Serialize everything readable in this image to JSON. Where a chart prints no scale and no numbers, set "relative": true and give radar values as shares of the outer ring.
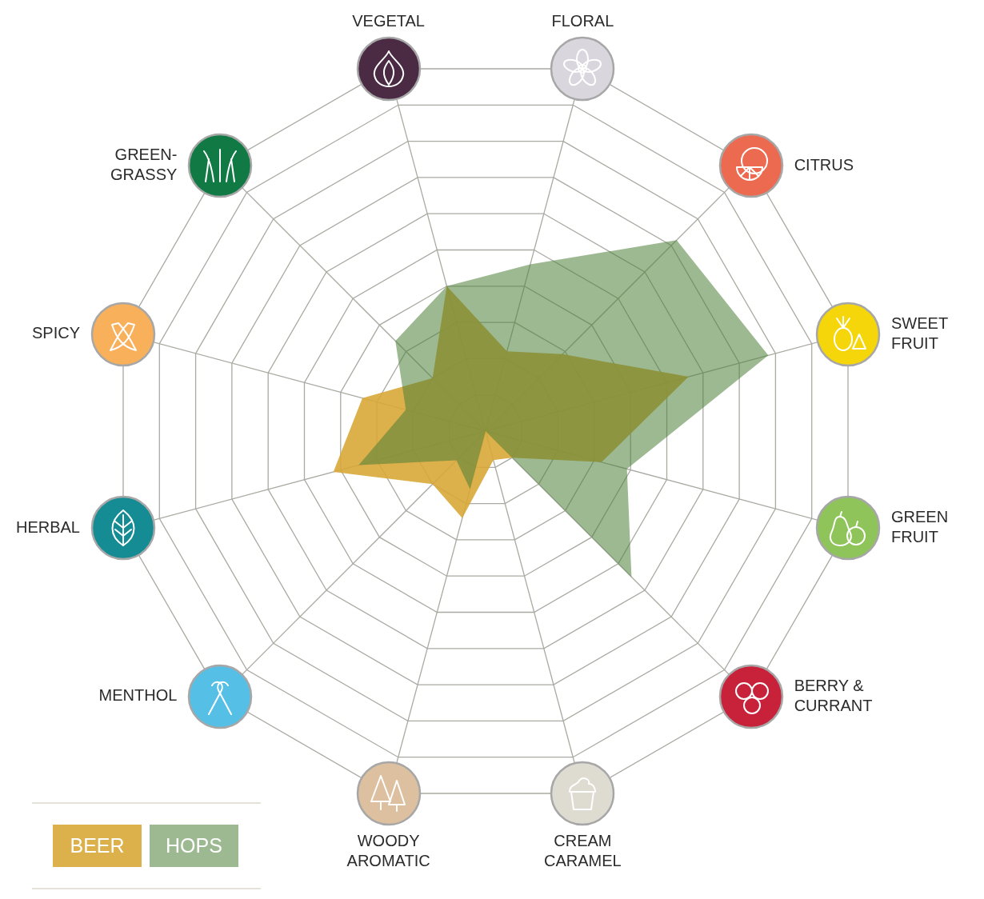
{
  "chart_data": {
    "type": "radar",
    "relative": true,
    "grid": true,
    "legend": "bottom left",
    "categories": [
      "FLORAL",
      "CITRUS",
      "SWEET FRUIT",
      "GREEN FRUIT",
      "BERRY & CURRANT",
      "CREAM CARAMEL",
      "WOODY AROMATIC",
      "MENTHOL",
      "HERBAL",
      "SPICY",
      "GREEN-GRASSY",
      "VEGETAL"
    ],
    "series": [
      {
        "name": "BEER",
        "color": "#dcb04a",
        "values": [
          0.22,
          0.29,
          0.56,
          0.32,
          0.1,
          0.08,
          0.24,
          0.2,
          0.42,
          0.34,
          0.2,
          0.4
        ]
      },
      {
        "name": "HOPS",
        "color": "#9db992",
        "values": [
          0.46,
          0.72,
          0.78,
          0.39,
          0.55,
          0,
          0.16,
          0.11,
          0.35,
          0.22,
          0.34,
          0.4
        ]
      }
    ]
  }
}
